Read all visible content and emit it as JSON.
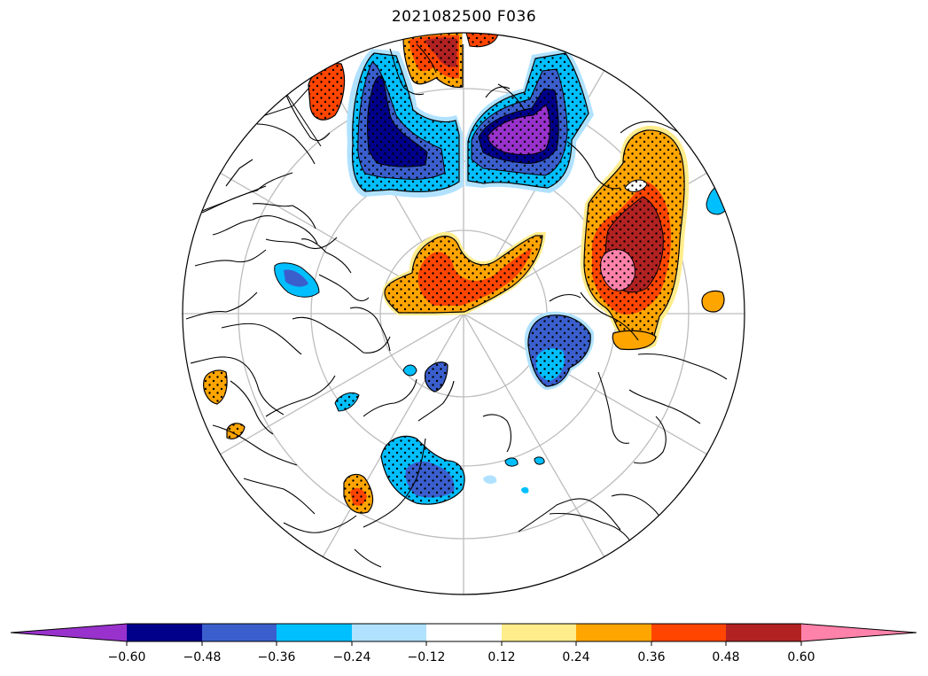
{
  "title": "2021082500 F036",
  "colorbar": {
    "tick_labels": [
      "−0.60",
      "−0.48",
      "−0.36",
      "−0.24",
      "−0.12",
      "0.12",
      "0.24",
      "0.36",
      "0.48",
      "0.60"
    ],
    "segment_colors": [
      "#9932CC",
      "#00008B",
      "#3A5FCD",
      "#00BFFF",
      "#B0E2FF",
      "#FFFFFF",
      "#FFEC8B",
      "#FFA500",
      "#FF4500",
      "#B22222",
      "#FF82AB"
    ],
    "extend": "both"
  },
  "map": {
    "projection": "north-polar-stereographic",
    "graticule": true,
    "stippling": "significant regions",
    "colors": {
      "purple": "#9932CC",
      "navy": "#00008B",
      "royal": "#3A5FCD",
      "sky": "#00BFFF",
      "pale_blue": "#B0E2FF",
      "pale_yellow": "#FFEC8B",
      "orange": "#FFA500",
      "orange_red": "#FF4500",
      "firebrick": "#B22222",
      "pink": "#FF82AB"
    }
  }
}
